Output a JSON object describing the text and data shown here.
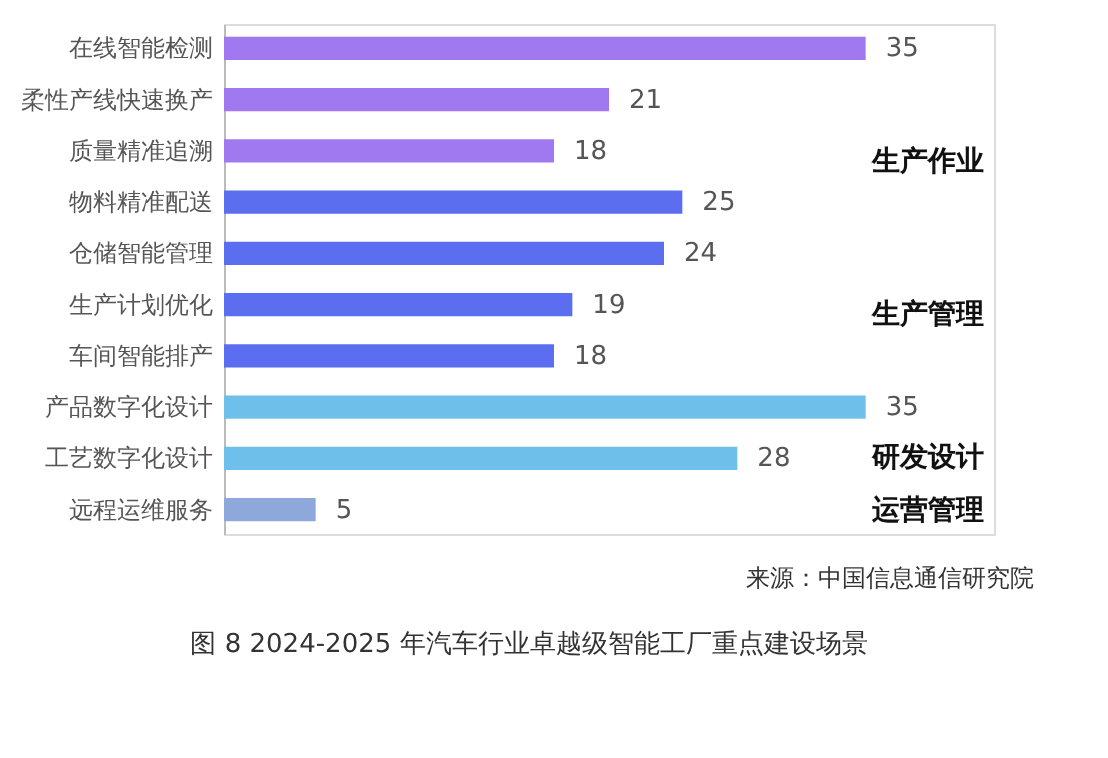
{
  "chart_data": {
    "type": "bar",
    "orientation": "horizontal",
    "data_labels": true,
    "categories": [
      "在线智能检测",
      "柔性产线快速换产",
      "质量精准追溯",
      "物料精准配送",
      "仓储智能管理",
      "生产计划优化",
      "车间智能排产",
      "产品数字化设计",
      "工艺数字化设计",
      "远程运维服务"
    ],
    "values": [
      35,
      21,
      18,
      25,
      24,
      19,
      18,
      35,
      28,
      5
    ],
    "colors": [
      "#a078f0",
      "#a078f0",
      "#a078f0",
      "#5b6ef0",
      "#5b6ef0",
      "#5b6ef0",
      "#5b6ef0",
      "#6ec0ea",
      "#6ec0ea",
      "#8fa8dc"
    ],
    "annotations": [
      "生产作业",
      "生产管理",
      "研发设计",
      "运营管理",
      "来源：中国信息通信研究院",
      "图  8 2024-2025 年汽车行业卓越级智能工厂重点建设场景"
    ]
  }
}
